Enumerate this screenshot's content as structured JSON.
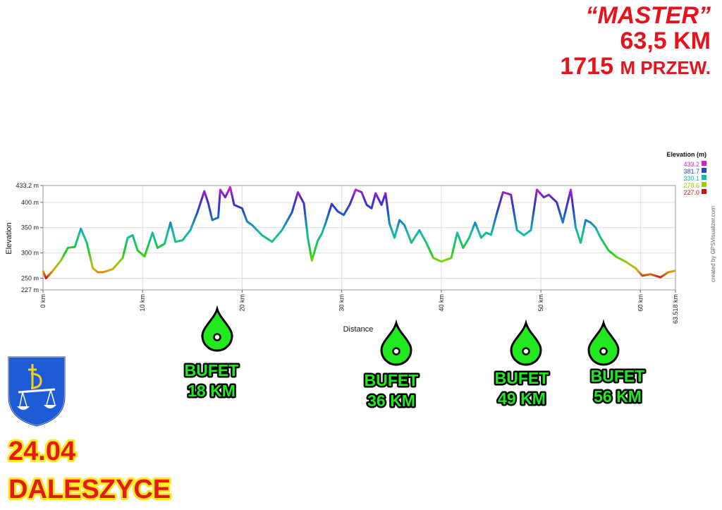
{
  "header": {
    "line1": "“MASTER”",
    "line2": "63,5 KM",
    "line3_big": "1715 ",
    "line3_small": "M PRZEW."
  },
  "chart_data": {
    "type": "area",
    "title": "",
    "xlabel": "Distance",
    "ylabel": "Elevation",
    "x_unit": "km",
    "y_unit": "m",
    "xlim": [
      0,
      63.518
    ],
    "ylim": [
      227,
      433.2
    ],
    "x_ticks": [
      "0 km",
      "10 km",
      "20 km",
      "30 km",
      "40 km",
      "50 km",
      "60 km",
      "63.518 km"
    ],
    "x_tick_values": [
      0,
      10,
      20,
      30,
      40,
      50,
      60,
      63.518
    ],
    "y_ticks": [
      "433.2 m",
      "400 m",
      "350 m",
      "300 m",
      "250 m",
      "227 m"
    ],
    "y_tick_values": [
      433.2,
      400,
      350,
      300,
      250,
      227
    ],
    "grid": true,
    "legend": {
      "title": "Elevation (m)",
      "placement": "top-right",
      "entries": [
        {
          "label": "433.2",
          "color": "#cc22cc"
        },
        {
          "label": "381.7",
          "color": "#2244cc"
        },
        {
          "label": "330.1",
          "color": "#11bbaa"
        },
        {
          "label": "278.6",
          "color": "#99cc11"
        },
        {
          "label": "227.0",
          "color": "#cc1111"
        }
      ]
    },
    "credit": "created by GPSVisualizer.com",
    "series": [
      {
        "x": [
          0,
          0.3,
          1,
          1.8,
          2.5,
          3.2,
          3.8,
          4.4,
          5.0,
          5.5,
          6.0,
          7.0,
          8.0,
          8.5,
          9.0,
          9.5,
          10.2,
          11.0,
          11.5,
          12.2,
          12.8,
          13.3,
          14.0,
          14.8,
          15.5,
          16.2,
          16.6,
          17.0,
          17.6,
          17.8,
          18.3,
          18.8,
          19.2,
          20.0,
          20.5,
          21.0,
          22.0,
          23.0,
          24.0,
          25.0,
          25.6,
          26.2,
          26.6,
          27.0,
          27.6,
          28.0,
          28.4,
          29.0,
          29.6,
          30.2,
          30.8,
          31.4,
          32.0,
          32.5,
          33.0,
          33.4,
          34.0,
          34.4,
          34.8,
          35.3,
          35.8,
          36.3,
          37.0,
          37.8,
          38.5,
          39.2,
          40.0,
          41.0,
          41.6,
          42.2,
          42.8,
          43.4,
          44.0,
          44.5,
          45.0,
          45.6,
          46.2,
          47.0,
          47.6,
          48.3,
          49.0,
          49.6,
          50.3,
          50.8,
          51.6,
          52.2,
          53.0,
          53.5,
          54.0,
          54.5,
          55.0,
          55.5,
          56.0,
          56.8,
          57.6,
          58.5,
          59.5,
          60.2,
          61.0,
          62.0,
          62.8,
          63.518
        ],
        "y": [
          265,
          250,
          265,
          285,
          310,
          312,
          348,
          320,
          270,
          262,
          262,
          268,
          290,
          330,
          335,
          305,
          293,
          340,
          310,
          318,
          360,
          322,
          325,
          345,
          380,
          422,
          398,
          365,
          370,
          425,
          410,
          430,
          395,
          388,
          362,
          355,
          335,
          322,
          345,
          380,
          420,
          398,
          330,
          285,
          325,
          338,
          360,
          397,
          382,
          375,
          395,
          425,
          420,
          395,
          388,
          418,
          395,
          418,
          358,
          330,
          365,
          355,
          320,
          345,
          320,
          290,
          283,
          290,
          340,
          310,
          330,
          360,
          330,
          340,
          336,
          380,
          420,
          415,
          345,
          335,
          345,
          425,
          410,
          415,
          400,
          360,
          425,
          350,
          320,
          365,
          360,
          350,
          330,
          305,
          292,
          283,
          270,
          255,
          258,
          252,
          262,
          265
        ]
      }
    ]
  },
  "bufets": [
    {
      "label": "BUFET",
      "km": "18 KM"
    },
    {
      "label": "BUFET",
      "km": "36 KM"
    },
    {
      "label": "BUFET",
      "km": "49 KM"
    },
    {
      "label": "BUFET",
      "km": "56 KM"
    }
  ],
  "footer": {
    "date": "24.04",
    "place": "DALESZYCE"
  }
}
